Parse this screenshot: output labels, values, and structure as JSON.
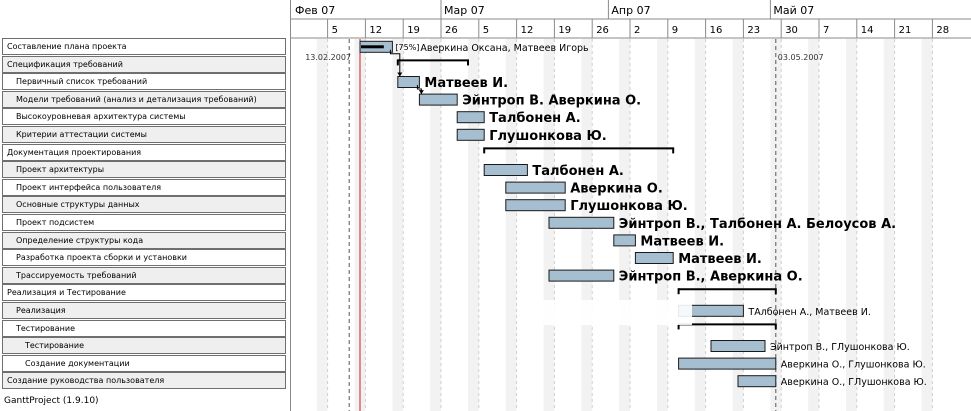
{
  "app": {
    "footer": "GanttProject (1.9.10)"
  },
  "timeline": {
    "months": [
      {
        "label": "Фев 07",
        "day": -3
      },
      {
        "label": "Мар 07",
        "day": 25
      },
      {
        "label": "Апр 07",
        "day": 56
      },
      {
        "label": "Май 07",
        "day": 86
      }
    ],
    "days": [
      "5",
      "12",
      "19",
      "26",
      "5",
      "12",
      "19",
      "26",
      "2",
      "9",
      "16",
      "23",
      "30",
      "7",
      "14",
      "21",
      "28"
    ],
    "today_day": 10,
    "start_marker": {
      "label": "13.02.2007",
      "day": 8
    },
    "end_marker": {
      "label": "03.05.2007",
      "day": 87
    }
  },
  "tasks": [
    {
      "name": "Составление плана проекта",
      "indent": 0,
      "start": 10,
      "end": 16,
      "type": "bar",
      "progress": 75,
      "progress_label": "[75%]",
      "assignee": "Аверкина Оксана, Матвеев Игорь",
      "assignee_style": "small"
    },
    {
      "name": "Спецификация требований",
      "indent": 0,
      "start": 17,
      "end": 30,
      "type": "summary",
      "assignee": "",
      "assignee_style": "small"
    },
    {
      "name": "Первичный список требований",
      "indent": 1,
      "start": 17,
      "end": 21,
      "type": "bar",
      "assignee": "Матвеев И.",
      "assignee_style": "big"
    },
    {
      "name": "Модели требований (анализ и детализация требований)",
      "indent": 1,
      "start": 21,
      "end": 28,
      "type": "bar",
      "assignee": "Эйнтроп В. Аверкина О.",
      "assignee_style": "big"
    },
    {
      "name": "Высокоуровневая архитектура системы",
      "indent": 1,
      "start": 28,
      "end": 33,
      "type": "bar",
      "assignee": "Талбонен А.",
      "assignee_style": "big"
    },
    {
      "name": "Критерии аттестации системы",
      "indent": 1,
      "start": 28,
      "end": 33,
      "type": "bar",
      "assignee": "Глушонкова Ю.",
      "assignee_style": "big"
    },
    {
      "name": "Документация проектирования",
      "indent": 0,
      "start": 33,
      "end": 68,
      "type": "summary",
      "assignee": "",
      "assignee_style": "small"
    },
    {
      "name": "Проект архитектуры",
      "indent": 1,
      "start": 33,
      "end": 41,
      "type": "bar",
      "assignee": "Талбонен А.",
      "assignee_style": "big"
    },
    {
      "name": "Проект интерфейса пользоватeля",
      "indent": 1,
      "start": 37,
      "end": 48,
      "type": "bar",
      "assignee": "Аверкина О.",
      "assignee_style": "big"
    },
    {
      "name": "Основные структуры данных",
      "indent": 1,
      "start": 37,
      "end": 48,
      "type": "bar",
      "assignee": "Глушонкова Ю.",
      "assignee_style": "big"
    },
    {
      "name": "Проект подсистем",
      "indent": 1,
      "start": 45,
      "end": 57,
      "type": "bar",
      "assignee": "Эйнтроп В., Талбонен А. Белоусов А.",
      "assignee_style": "big"
    },
    {
      "name": "Определение структуры кода",
      "indent": 1,
      "start": 57,
      "end": 61,
      "type": "bar",
      "assignee": "Матвеев И.",
      "assignee_style": "big"
    },
    {
      "name": "Разработка проекта сборки и установки",
      "indent": 1,
      "start": 61,
      "end": 68,
      "type": "bar",
      "assignee": "Матвеев И.",
      "assignee_style": "big"
    },
    {
      "name": "Трассируемость требований",
      "indent": 1,
      "start": 45,
      "end": 57,
      "type": "bar",
      "assignee": "Эйнтроп В., Аверкина О.",
      "assignee_style": "big"
    },
    {
      "name": "Реализация и  Тестирование",
      "indent": 0,
      "start": 69,
      "end": 87,
      "type": "summary",
      "assignee": "",
      "assignee_style": "small"
    },
    {
      "name": "Реализация",
      "indent": 1,
      "start": 69,
      "end": 81,
      "type": "bar",
      "assignee": "ТАлбонен А., Матвеев И.",
      "assignee_style": "small"
    },
    {
      "name": "Тестирование",
      "indent": 1,
      "start": 69,
      "end": 87,
      "type": "summary",
      "assignee": "",
      "assignee_style": "small"
    },
    {
      "name": "Тестирование",
      "indent": 2,
      "start": 75,
      "end": 85,
      "type": "bar",
      "assignee": "Эйнтроп В., ГЛушонкова Ю.",
      "assignee_style": "small"
    },
    {
      "name": "Создание документации",
      "indent": 2,
      "start": 69,
      "end": 87,
      "type": "bar",
      "assignee": "Аверкина О., Глушонкова Ю.",
      "assignee_style": "small"
    },
    {
      "name": "Создание руководства пользоватeля",
      "indent": 0,
      "start": 80,
      "end": 87,
      "type": "bar",
      "assignee": "Аверкина О., ГЛушонкова Ю.",
      "assignee_style": "small"
    }
  ],
  "colors": {
    "bar_fill": "#a6bfd0",
    "bar_stroke": "#1a1a1a",
    "progress": "#000000",
    "today_line": "#d02020",
    "gridline": "#cfcfcf",
    "header_bg": "#ffffff",
    "header_line": "#8a8a8a"
  }
}
